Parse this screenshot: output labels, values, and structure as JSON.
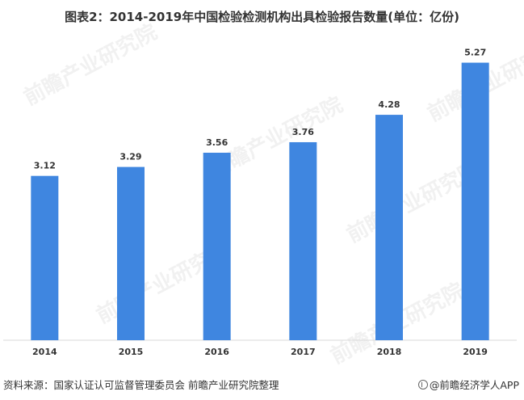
{
  "title": "图表2：2014-2019年中国检验检测机构出具检验报告数量(单位：亿份)",
  "footer": {
    "source": "资料来源：国家认证认可监督管理委员会 前瞻产业研究院整理",
    "brand": "@前瞻经济学人APP"
  },
  "watermark": "前瞻产业研究院",
  "colors": {
    "bar": "#3F86E0",
    "axis": "#D9D9D9",
    "label": "#333333"
  },
  "chart_data": {
    "type": "bar",
    "title": "图表2：2014-2019年中国检验检测机构出具检验报告数量(单位：亿份)",
    "categories": [
      "2014",
      "2015",
      "2016",
      "2017",
      "2018",
      "2019"
    ],
    "values": [
      3.12,
      3.29,
      3.56,
      3.76,
      4.28,
      5.27
    ],
    "data_labels": [
      "3.12",
      "3.29",
      "3.56",
      "3.76",
      "4.28",
      "5.27"
    ],
    "ylim": [
      0,
      6
    ],
    "grid": false,
    "legend": "none",
    "xlabel": "",
    "ylabel": ""
  }
}
